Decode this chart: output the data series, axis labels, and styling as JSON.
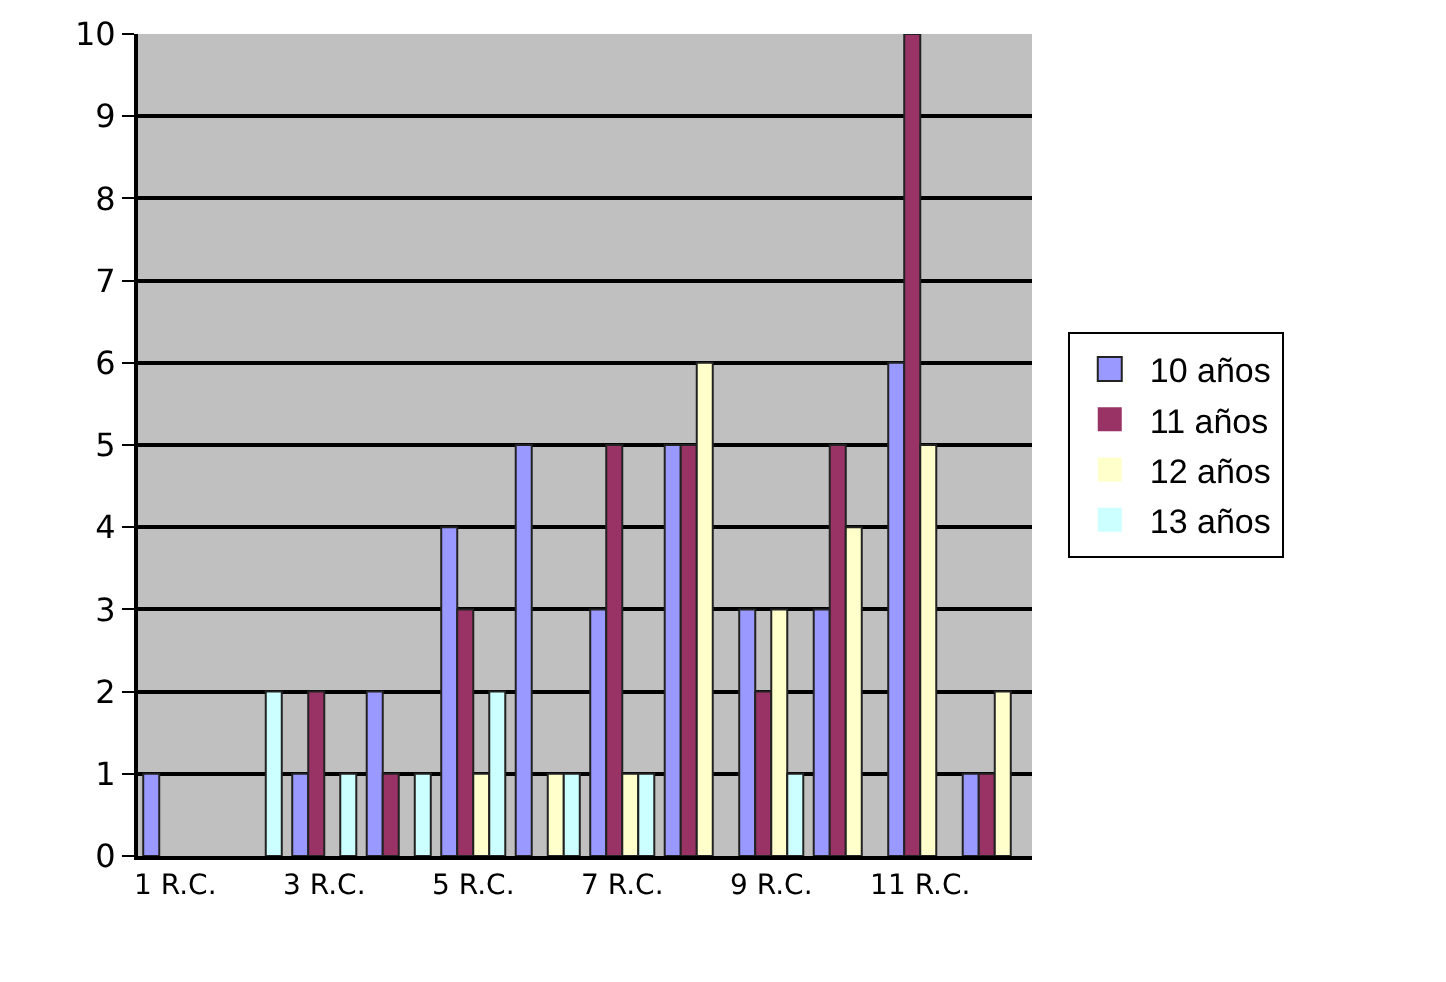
{
  "chart_data": {
    "type": "bar",
    "categories": [
      "1 R.C.",
      null,
      "3 R.C.",
      null,
      "5 R.C.",
      null,
      "7 R.C.",
      null,
      "9 R.C.",
      null,
      "11 R.C.",
      null
    ],
    "series": [
      {
        "name": "10 años",
        "color": "#9999ff",
        "values": [
          1,
          0,
          1,
          2,
          4,
          5,
          3,
          5,
          3,
          3,
          6,
          1
        ]
      },
      {
        "name": "11 años",
        "color": "#993366",
        "values": [
          0,
          0,
          2,
          1,
          3,
          0,
          5,
          5,
          2,
          5,
          10,
          1
        ]
      },
      {
        "name": "12 años",
        "color": "#ffffcc",
        "values": [
          0,
          0,
          0,
          0,
          1,
          1,
          1,
          6,
          3,
          4,
          5,
          2
        ]
      },
      {
        "name": "13 años",
        "color": "#ccffff",
        "values": [
          0,
          2,
          1,
          1,
          2,
          1,
          1,
          0,
          1,
          0,
          0,
          0
        ]
      }
    ],
    "ylim": [
      0,
      10
    ],
    "yticks": [
      0,
      1,
      2,
      3,
      4,
      5,
      6,
      7,
      8,
      9,
      10
    ],
    "grid": "y",
    "legend": "right"
  }
}
